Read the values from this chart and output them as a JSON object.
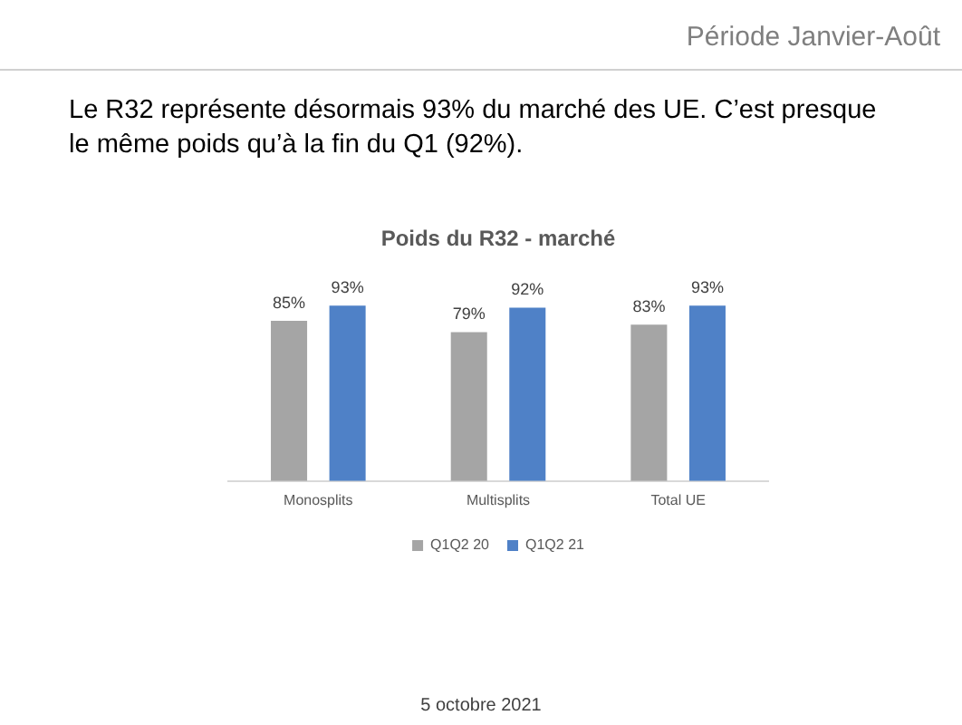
{
  "chart_data": {
    "type": "bar",
    "title": "Poids du R32 - marché",
    "categories": [
      "Monosplits",
      "Multisplits",
      "Total UE"
    ],
    "series": [
      {
        "name": "Q1Q2 20",
        "color": "#a5a5a5",
        "values": [
          85,
          79,
          83
        ],
        "value_labels": [
          "85%",
          "79%",
          "83%"
        ]
      },
      {
        "name": "Q1Q2 21",
        "color": "#4f81c7",
        "values": [
          93,
          92,
          93
        ],
        "value_labels": [
          "93%",
          "92%",
          "93%"
        ]
      }
    ],
    "grid": false,
    "legend": "bottom",
    "tick_labels": "x",
    "annotations": [
      "Période Janvier-Août",
      "Le R32 représente désormais 93% du marché des UE. C’est presque le même poids qu’à la fin du Q1 (92%).",
      "5 octobre 2021"
    ]
  }
}
